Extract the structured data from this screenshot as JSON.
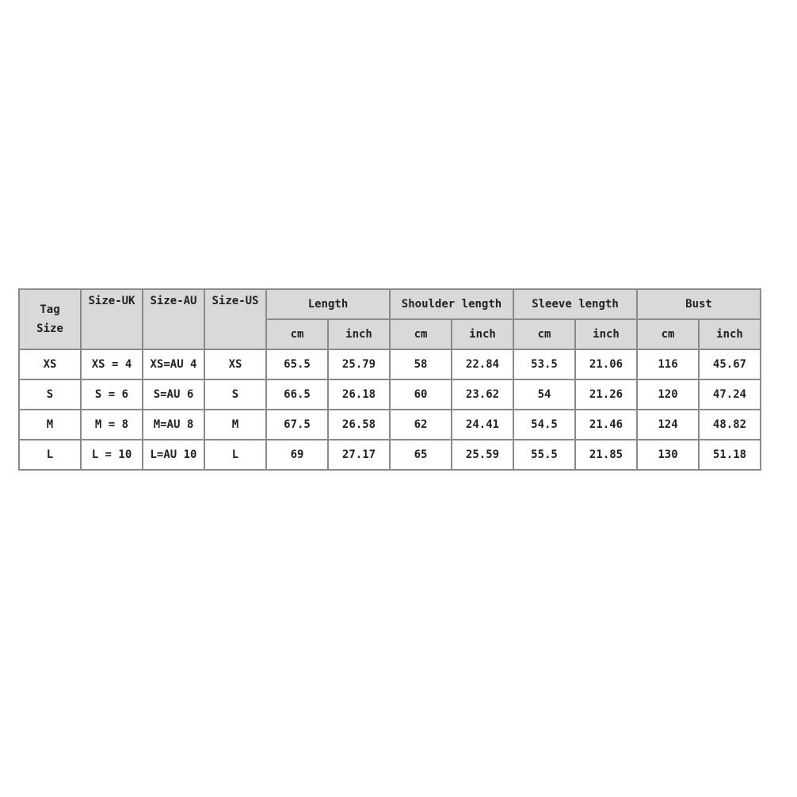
{
  "table": {
    "headers": {
      "tag_size_line1": "Tag",
      "tag_size_line2": "Size",
      "size_uk": "Size-UK",
      "size_au": "Size-AU",
      "size_us": "Size-US",
      "groups": [
        "Length",
        "Shoulder length",
        "Sleeve length",
        "Bust"
      ],
      "units": [
        "cm",
        "inch",
        "cm",
        "inch",
        "cm",
        "inch",
        "cm",
        "inch"
      ]
    },
    "rows": [
      [
        "XS",
        "XS = 4",
        "XS=AU 4",
        "XS",
        "65.5",
        "25.79",
        "58",
        "22.84",
        "53.5",
        "21.06",
        "116",
        "45.67"
      ],
      [
        "S",
        "S = 6",
        "S=AU 6",
        "S",
        "66.5",
        "26.18",
        "60",
        "23.62",
        "54",
        "21.26",
        "120",
        "47.24"
      ],
      [
        "M",
        "M = 8",
        "M=AU 8",
        "M",
        "67.5",
        "26.58",
        "62",
        "24.41",
        "54.5",
        "21.46",
        "124",
        "48.82"
      ],
      [
        "L",
        "L = 10",
        "L=AU 10",
        "L",
        "69",
        "27.17",
        "65",
        "25.59",
        "55.5",
        "21.85",
        "130",
        "51.18"
      ]
    ]
  }
}
